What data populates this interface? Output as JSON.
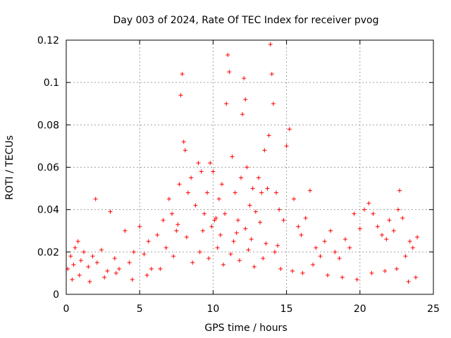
{
  "chart_data": {
    "type": "scatter",
    "title": "Day 003 of 2024, Rate Of TEC Index for receiver pvog",
    "xlabel": "GPS time / hours",
    "ylabel": "ROTI / TECUs",
    "xlim": [
      0,
      25
    ],
    "ylim": [
      0,
      0.12
    ],
    "xticks": [
      0,
      5,
      10,
      15,
      20,
      25
    ],
    "xtick_labels": [
      "0",
      "5",
      "10",
      "15",
      "20",
      "25"
    ],
    "yticks": [
      0,
      0.02,
      0.04,
      0.06,
      0.08,
      0.1,
      0.12
    ],
    "ytick_labels": [
      "0",
      "0.02",
      "0.04",
      "0.06",
      "0.08",
      "0.1",
      "0.12"
    ],
    "grid": true,
    "marker": "+",
    "series_color": "#ff0000",
    "series": [
      {
        "name": "ROTI",
        "x": [
          0.1,
          0.3,
          0.5,
          0.6,
          0.8,
          1.0,
          1.2,
          1.5,
          1.8,
          2.0,
          2.1,
          2.4,
          2.8,
          3.0,
          3.3,
          3.6,
          4.0,
          4.3,
          4.6,
          5.0,
          5.3,
          5.6,
          5.8,
          6.2,
          6.6,
          6.8,
          7.0,
          7.2,
          7.5,
          7.7,
          7.8,
          7.9,
          8.0,
          8.1,
          8.3,
          8.5,
          8.8,
          9.0,
          9.2,
          9.4,
          9.6,
          9.8,
          10.0,
          10.2,
          10.4,
          10.6,
          10.8,
          10.9,
          11.0,
          11.1,
          11.3,
          11.5,
          11.7,
          11.9,
          12.0,
          12.1,
          12.2,
          12.3,
          12.5,
          12.7,
          12.9,
          13.1,
          13.3,
          13.5,
          13.7,
          13.8,
          13.9,
          14.0,
          14.1,
          14.3,
          14.5,
          14.8,
          15.0,
          15.2,
          15.5,
          15.8,
          16.0,
          16.3,
          16.6,
          17.0,
          17.3,
          17.6,
          18.0,
          18.3,
          18.6,
          19.0,
          19.3,
          19.6,
          20.0,
          20.3,
          20.6,
          20.9,
          21.2,
          21.5,
          21.8,
          22.0,
          22.3,
          22.6,
          22.7,
          22.9,
          23.1,
          23.4,
          23.6,
          23.9,
          0.4,
          0.9,
          1.6,
          2.6,
          3.4,
          4.5,
          5.5,
          6.4,
          7.3,
          8.6,
          9.1,
          9.7,
          10.3,
          10.7,
          11.2,
          11.8,
          12.4,
          12.8,
          13.4,
          14.2,
          14.6,
          15.4,
          16.1,
          16.8,
          17.8,
          18.8,
          19.8,
          20.8,
          21.7,
          22.5,
          23.3,
          23.8,
          8.2,
          9.3,
          10.5,
          11.4,
          12.6,
          13.6,
          14.4,
          7.6,
          10.1,
          12.2,
          13.2,
          11.6,
          9.9
        ],
        "y": [
          0.012,
          0.018,
          0.014,
          0.022,
          0.025,
          0.016,
          0.02,
          0.013,
          0.018,
          0.045,
          0.015,
          0.021,
          0.011,
          0.039,
          0.017,
          0.012,
          0.03,
          0.015,
          0.02,
          0.032,
          0.019,
          0.025,
          0.012,
          0.028,
          0.035,
          0.022,
          0.045,
          0.038,
          0.03,
          0.052,
          0.094,
          0.104,
          0.072,
          0.068,
          0.048,
          0.055,
          0.042,
          0.062,
          0.058,
          0.038,
          0.048,
          0.062,
          0.058,
          0.036,
          0.045,
          0.052,
          0.038,
          0.09,
          0.113,
          0.105,
          0.065,
          0.048,
          0.035,
          0.055,
          0.085,
          0.102,
          0.092,
          0.06,
          0.042,
          0.05,
          0.039,
          0.055,
          0.048,
          0.068,
          0.05,
          0.075,
          0.118,
          0.104,
          0.09,
          0.048,
          0.04,
          0.035,
          0.07,
          0.078,
          0.045,
          0.032,
          0.028,
          0.036,
          0.049,
          0.022,
          0.018,
          0.025,
          0.03,
          0.02,
          0.017,
          0.026,
          0.022,
          0.038,
          0.031,
          0.04,
          0.043,
          0.038,
          0.032,
          0.028,
          0.026,
          0.035,
          0.03,
          0.04,
          0.049,
          0.036,
          0.018,
          0.025,
          0.022,
          0.027,
          0.007,
          0.009,
          0.006,
          0.008,
          0.01,
          0.007,
          0.009,
          0.012,
          0.018,
          0.015,
          0.02,
          0.017,
          0.022,
          0.014,
          0.019,
          0.016,
          0.021,
          0.013,
          0.017,
          0.02,
          0.012,
          0.011,
          0.01,
          0.014,
          0.009,
          0.008,
          0.007,
          0.01,
          0.011,
          0.012,
          0.006,
          0.008,
          0.027,
          0.03,
          0.028,
          0.025,
          0.026,
          0.024,
          0.023,
          0.033,
          0.035,
          0.031,
          0.034,
          0.029,
          0.032
        ]
      }
    ]
  }
}
